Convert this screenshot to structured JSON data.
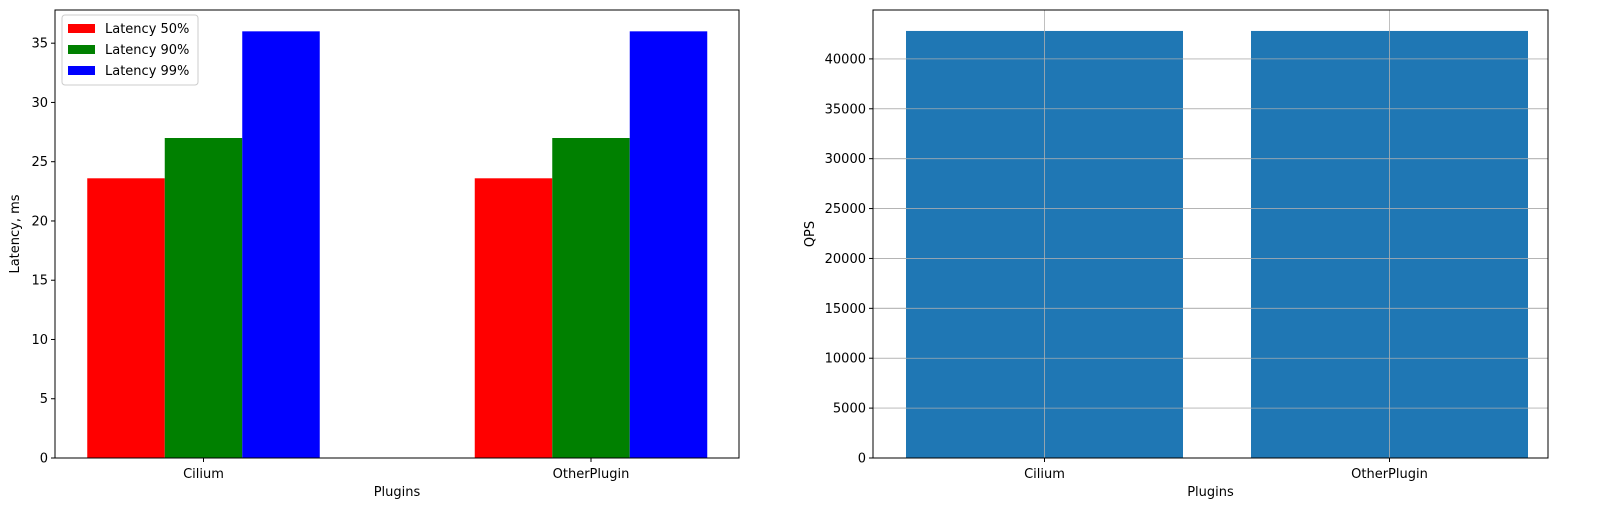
{
  "chart_data": [
    {
      "type": "bar",
      "title": "",
      "xlabel": "Plugins",
      "ylabel": "Latency, ms",
      "categories": [
        "Cilium",
        "OtherPlugin"
      ],
      "series": [
        {
          "name": "Latency 50%",
          "color": "#ff0000",
          "values": [
            23.6,
            23.6
          ]
        },
        {
          "name": "Latency 90%",
          "color": "#008000",
          "values": [
            27.0,
            27.0
          ]
        },
        {
          "name": "Latency 99%",
          "color": "#0000ff",
          "values": [
            36.0,
            36.0
          ]
        }
      ],
      "ylim": [
        0,
        37.8
      ],
      "yticks": [
        "0",
        "5",
        "10",
        "15",
        "20",
        "25",
        "30",
        "35"
      ],
      "grid": false,
      "legend": "top-left"
    },
    {
      "type": "bar",
      "title": "",
      "xlabel": "Plugins",
      "ylabel": "QPS",
      "categories": [
        "Cilium",
        "OtherPlugin"
      ],
      "series": [
        {
          "color": "#1f77b4",
          "values": [
            42800,
            42800
          ]
        }
      ],
      "ylim": [
        0,
        44900
      ],
      "yticks": [
        "0",
        "5000",
        "10000",
        "15000",
        "20000",
        "25000",
        "30000",
        "35000",
        "40000"
      ],
      "grid": true
    }
  ]
}
